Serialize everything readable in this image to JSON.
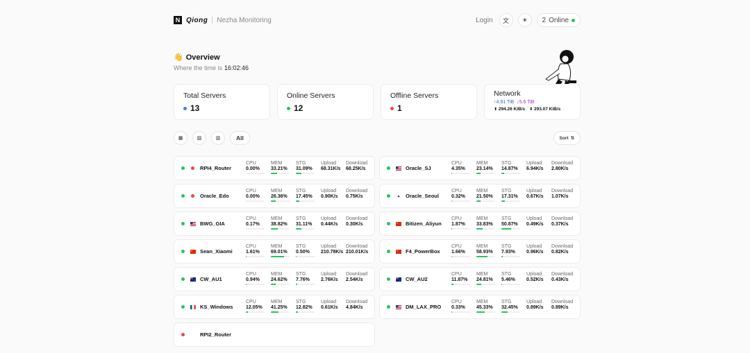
{
  "header": {
    "logo_letter": "N",
    "brand": "Qiong",
    "subtitle": "Nezha Monitoring",
    "login": "Login",
    "online_count": "2",
    "online_label": "Online"
  },
  "overview": {
    "title": "Overview",
    "time_label": "Where the time is",
    "time": "16:02:46"
  },
  "stats": {
    "total_label": "Total Servers",
    "total_value": "13",
    "online_label": "Online Servers",
    "online_value": "12",
    "offline_label": "Offline Servers",
    "offline_value": "1",
    "network_label": "Network",
    "net_up_total": "↑4.91 TiB",
    "net_down_total": "↓5.6 TiB",
    "net_up_speed": "294.26 KiB/s",
    "net_down_speed": "293.07 KiB/s"
  },
  "toolbar": {
    "all_label": "All",
    "sort_label": "Sort"
  },
  "labels": {
    "cpu": "CPU",
    "mem": "MEM",
    "stg": "STG",
    "upload": "Upload",
    "download": "Download"
  },
  "colors": {
    "online": "#22c55e",
    "offline": "#ef4444",
    "accent": "#3b82f6"
  },
  "servers": [
    {
      "name": "RPI4_Router",
      "online": true,
      "flag": "dot-red",
      "cpu": "0.00%",
      "mem": "33.21%",
      "mem_pct": 33.21,
      "stg": "31.09%",
      "stg_pct": 31.09,
      "cpu_pct": 0,
      "up": "68.31K/s",
      "down": "68.25K/s"
    },
    {
      "name": "Oracle_SJ",
      "online": true,
      "flag": "us",
      "cpu": "4.35%",
      "cpu_pct": 4.35,
      "mem": "23.14%",
      "mem_pct": 23.14,
      "stg": "14.87%",
      "stg_pct": 14.87,
      "up": "6.94K/s",
      "down": "2.80K/s"
    },
    {
      "name": "Oracle_Edo",
      "online": true,
      "flag": "dot-red",
      "cpu": "0.00%",
      "cpu_pct": 0,
      "mem": "26.36%",
      "mem_pct": 26.36,
      "stg": "17.45%",
      "stg_pct": 17.45,
      "up": "0.90K/s",
      "down": "0.75K/s"
    },
    {
      "name": "Oracle_Seoul",
      "online": true,
      "flag": "kr",
      "cpu": "0.32%",
      "cpu_pct": 0.32,
      "mem": "21.50%",
      "mem_pct": 21.5,
      "stg": "17.31%",
      "stg_pct": 17.31,
      "up": "0.67K/s",
      "down": "1.07K/s"
    },
    {
      "name": "BWG_GIA",
      "online": true,
      "flag": "us",
      "cpu": "0.17%",
      "cpu_pct": 0.17,
      "mem": "38.82%",
      "mem_pct": 38.82,
      "stg": "31.11%",
      "stg_pct": 31.11,
      "up": "0.44K/s",
      "down": "0.30K/s"
    },
    {
      "name": "Bitizen_Aliyun",
      "online": true,
      "flag": "cn",
      "cpu": "1.87%",
      "cpu_pct": 1.87,
      "mem": "33.83%",
      "mem_pct": 33.83,
      "stg": "50.87%",
      "stg_pct": 50.87,
      "up": "0.49K/s",
      "down": "0.37K/s"
    },
    {
      "name": "Sean_Xiaomi",
      "online": true,
      "flag": "cn",
      "cpu": "1.61%",
      "cpu_pct": 1.61,
      "mem": "69.01%",
      "mem_pct": 69.01,
      "stg": "0.50%",
      "stg_pct": 0.5,
      "up": "210.78K/s",
      "down": "210.01K/s"
    },
    {
      "name": "F4_PowerBox",
      "online": true,
      "flag": "cn",
      "cpu": "1.66%",
      "cpu_pct": 1.66,
      "mem": "58.93%",
      "mem_pct": 58.93,
      "stg": "7.93%",
      "stg_pct": 7.93,
      "up": "0.96K/s",
      "down": "0.82K/s"
    },
    {
      "name": "CW_AU1",
      "online": true,
      "flag": "au",
      "cpu": "0.94%",
      "cpu_pct": 0.94,
      "mem": "24.62%",
      "mem_pct": 24.62,
      "stg": "7.76%",
      "stg_pct": 7.76,
      "up": "2.76K/s",
      "down": "2.54K/s"
    },
    {
      "name": "CW_AU2",
      "online": true,
      "flag": "au",
      "cpu": "11.87%",
      "cpu_pct": 11.87,
      "mem": "24.81%",
      "mem_pct": 24.81,
      "stg": "5.46%",
      "stg_pct": 5.46,
      "up": "0.52K/s",
      "down": "0.43K/s"
    },
    {
      "name": "KS_Windows",
      "online": true,
      "flag": "fr",
      "cpu": "12.05%",
      "cpu_pct": 12.05,
      "mem": "41.25%",
      "mem_pct": 41.25,
      "stg": "12.82%",
      "stg_pct": 12.82,
      "up": "0.61K/s",
      "down": "4.84K/s"
    },
    {
      "name": "DM_LAX_PRO",
      "online": true,
      "flag": "us",
      "cpu": "0.33%",
      "cpu_pct": 0.33,
      "mem": "45.33%",
      "mem_pct": 45.33,
      "stg": "32.45%",
      "stg_pct": 32.45,
      "up": "0.89K/s",
      "down": "0.89K/s"
    },
    {
      "name": "RPI2_Router",
      "online": false,
      "flag": "none"
    }
  ]
}
